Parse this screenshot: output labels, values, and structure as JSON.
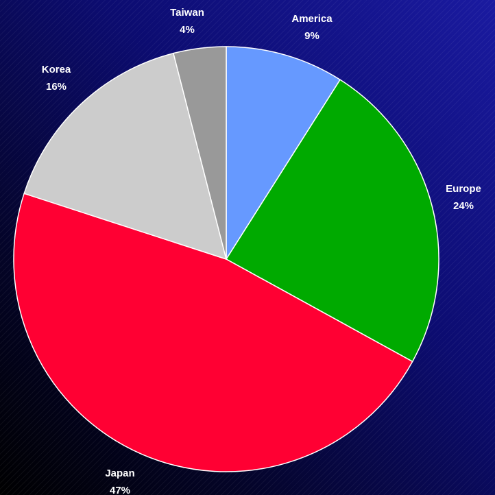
{
  "chart_data": {
    "type": "pie",
    "categories": [
      "America",
      "Europe",
      "Japan",
      "Korea",
      "Taiwan"
    ],
    "values": [
      9,
      24,
      47,
      16,
      4
    ],
    "value_labels": [
      "9%",
      "24%",
      "47%",
      "16%",
      "4%"
    ],
    "colors": [
      "#6699ff",
      "#00aa00",
      "#ff0033",
      "#cccccc",
      "#999999"
    ]
  }
}
